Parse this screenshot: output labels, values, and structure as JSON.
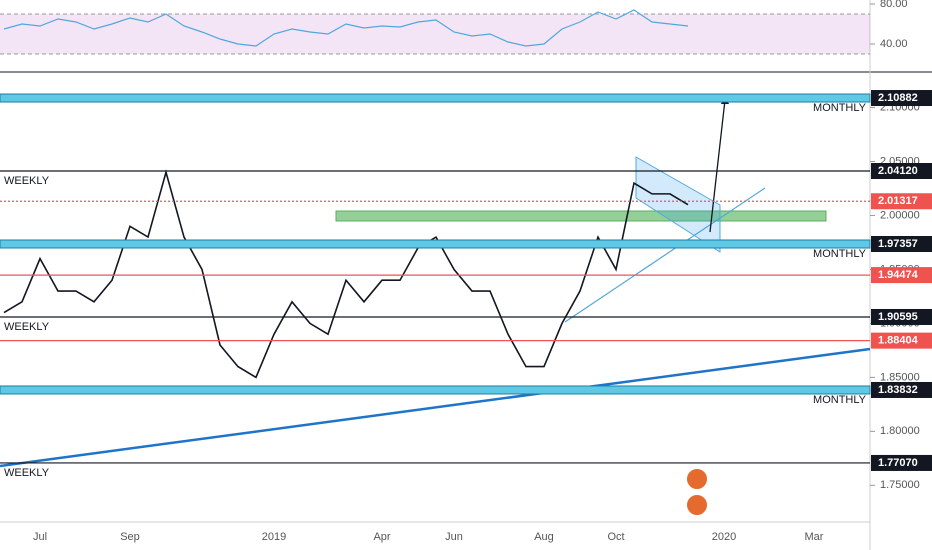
{
  "chart_data": [
    {
      "type": "line",
      "categories": [
        null,
        null,
        "Jul",
        null,
        null,
        null,
        null,
        "Sep",
        null,
        null,
        null,
        null,
        null,
        null,
        null,
        "2019",
        null,
        null,
        null,
        null,
        null,
        "Apr",
        null,
        null,
        null,
        "Jun",
        null,
        null,
        null,
        null,
        "Aug",
        null,
        null,
        null,
        "Oct",
        null,
        null,
        null,
        null,
        null,
        "2020",
        null,
        null,
        null,
        null,
        "Mar",
        null,
        null
      ],
      "series": [
        {
          "color": "#131722",
          "values": [
            1.91,
            1.92,
            1.96,
            1.93,
            1.93,
            1.92,
            1.94,
            1.99,
            1.98,
            2.04,
            1.98,
            1.95,
            1.88,
            1.86,
            1.85,
            1.89,
            1.92,
            1.9,
            1.89,
            1.94,
            1.92,
            1.94,
            1.94,
            1.97,
            1.98,
            1.95,
            1.93,
            1.93,
            1.89,
            1.86,
            1.86,
            1.9,
            1.93,
            1.98,
            1.95,
            2.03,
            2.02,
            2.02,
            2.01,
            null,
            null,
            null,
            null,
            null,
            null,
            null,
            null,
            null
          ]
        }
      ],
      "ylim": [
        1.716,
        2.132
      ],
      "yticks": [
        {
          "value": 1.75,
          "label": "1.75000"
        },
        {
          "value": 1.8,
          "label": "1.80000"
        },
        {
          "value": 1.85,
          "label": "1.85000"
        },
        {
          "value": 1.9,
          "label": "1.90000"
        },
        {
          "value": 1.95,
          "label": "1.95000"
        },
        {
          "value": 2.0,
          "label": "2.00000"
        },
        {
          "value": 2.05,
          "label": "2.05000"
        },
        {
          "value": 2.1,
          "label": "2.10000"
        }
      ],
      "levels": [
        {
          "value": 2.10882,
          "label": "2.10882",
          "kind": "band",
          "color": "#5ec8e5",
          "note": "MONTHLY",
          "note_side": "right"
        },
        {
          "value": 2.0412,
          "label": "2.04120",
          "kind": "solid",
          "color": "#131722",
          "note": "WEEKLY",
          "note_side": "left"
        },
        {
          "value": 2.01317,
          "label": "2.01317",
          "kind": "dotted",
          "color": "#ef5350"
        },
        {
          "value": 1.97357,
          "label": "1.97357",
          "kind": "band",
          "color": "#5ec8e5",
          "note": "MONTHLY",
          "note_side": "right"
        },
        {
          "value": 1.94474,
          "label": "1.94474",
          "kind": "solid",
          "color": "#ef5350"
        },
        {
          "value": 1.90595,
          "label": "1.90595",
          "kind": "solid",
          "color": "#131722",
          "note": "WEEKLY",
          "note_side": "left"
        },
        {
          "value": 1.88404,
          "label": "1.88404",
          "kind": "solid",
          "color": "#ef5350"
        },
        {
          "value": 1.83832,
          "label": "1.83832",
          "kind": "band",
          "color": "#5ec8e5",
          "note": "MONTHLY",
          "note_side": "right"
        },
        {
          "value": 1.7707,
          "label": "1.77070",
          "kind": "solid",
          "color": "#131722",
          "note": "WEEKLY",
          "note_side": "left"
        }
      ]
    },
    {
      "type": "line",
      "series": [
        {
          "color": "#4fa8dc",
          "values": [
            55,
            60,
            58,
            65,
            62,
            55,
            60,
            66,
            62,
            70,
            58,
            52,
            45,
            40,
            38,
            50,
            55,
            52,
            50,
            60,
            56,
            58,
            57,
            62,
            64,
            52,
            48,
            50,
            42,
            38,
            40,
            55,
            62,
            72,
            65,
            74,
            62,
            60,
            58,
            null,
            null,
            null,
            null,
            null,
            null,
            null,
            null,
            null
          ]
        }
      ],
      "ylim": [
        12,
        84
      ],
      "yticks": [
        {
          "value": 40,
          "label": "40.00"
        },
        {
          "value": 80,
          "label": "80.00"
        }
      ],
      "bands": [
        30,
        70
      ]
    }
  ]
}
